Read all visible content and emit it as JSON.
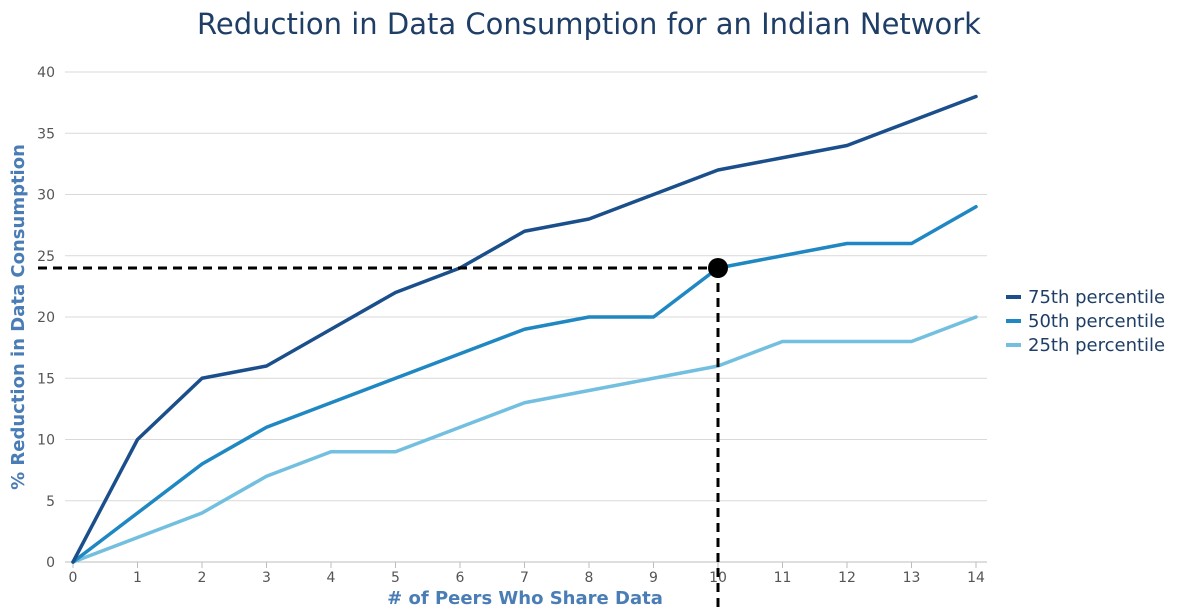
{
  "chart_data": {
    "type": "line",
    "title": "Reduction in Data Consumption for an Indian Network",
    "xlabel": "# of Peers Who Share Data",
    "ylabel": "% Reduction in Data Consumption",
    "x": [
      0,
      1,
      2,
      3,
      4,
      5,
      6,
      7,
      8,
      9,
      10,
      11,
      12,
      13,
      14
    ],
    "xlim": [
      0,
      14
    ],
    "ylim": [
      0,
      40
    ],
    "yticks": [
      0,
      5,
      10,
      15,
      20,
      25,
      30,
      35,
      40
    ],
    "grid": true,
    "legend_position": "right",
    "series": [
      {
        "name": "75th percentile",
        "color": "#1a4f8c",
        "values": [
          0,
          10,
          15,
          16,
          19,
          22,
          24,
          27,
          28,
          30,
          32,
          33,
          34,
          36,
          38
        ]
      },
      {
        "name": "50th percentile",
        "color": "#1f87c2",
        "values": [
          0,
          4,
          8,
          11,
          13,
          15,
          17,
          19,
          20,
          20,
          24,
          25,
          26,
          26,
          29
        ]
      },
      {
        "name": "25th percentile",
        "color": "#72bfdf",
        "values": [
          0,
          2,
          4,
          7,
          9,
          9,
          11,
          13,
          14,
          15,
          16,
          18,
          18,
          18,
          20
        ]
      }
    ],
    "annotation": {
      "x": 10,
      "y": 24,
      "style": "dashed crosshair with marker"
    }
  }
}
